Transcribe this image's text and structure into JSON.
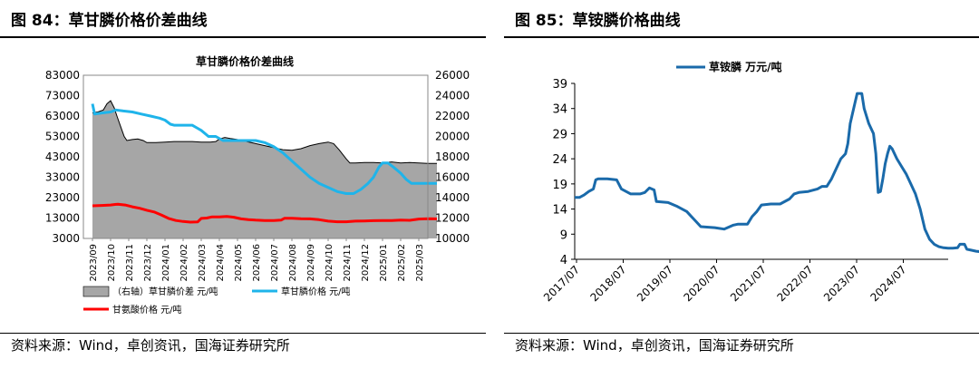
{
  "colors": {
    "fill": "#a6a6a6",
    "blue_light": "#1fb4ea",
    "red": "#ff0000",
    "blue_dark": "#1a6aaa"
  },
  "left": {
    "fig_title": "图 84：草甘膦价格价差曲线",
    "source": "资料来源：Wind，卓创资讯，国海证券研究所",
    "chart_data": {
      "type": "line",
      "title": "草甘膦价格价差曲线",
      "y_left": {
        "range": [
          3000,
          83000
        ],
        "ticks": [
          "83000",
          "73000",
          "63000",
          "53000",
          "43000",
          "33000",
          "23000",
          "13000",
          "3000"
        ]
      },
      "y_right": {
        "range": [
          10000,
          26000
        ],
        "ticks": [
          "26000",
          "24000",
          "22000",
          "20000",
          "18000",
          "16000",
          "14000",
          "12000",
          "10000"
        ]
      },
      "x_ticks": [
        "2023/09",
        "2023/10",
        "2023/11",
        "2023/12",
        "2024/01",
        "2024/02",
        "2024/03",
        "2024/04",
        "2024/05",
        "2024/06",
        "2024/07",
        "2024/08",
        "2024/09",
        "2024/10",
        "2024/11",
        "2024/12",
        "2025/01",
        "2025/02",
        "2025/03"
      ],
      "legend": {
        "spread": "（右轴）草甘膦价差 元/吨",
        "glyphosate": "草甘膦价格 元/吨",
        "glycine": "甘氨酸价格 元/吨"
      },
      "series": [
        {
          "name": "（右轴）草甘膦价差 元/吨",
          "axis": "right",
          "style": "area",
          "points": [
            [
              0,
              22300
            ],
            [
              0.3,
              22400
            ],
            [
              0.6,
              22600
            ],
            [
              0.8,
              23200
            ],
            [
              1.0,
              23500
            ],
            [
              1.2,
              22800
            ],
            [
              1.35,
              22000
            ],
            [
              1.55,
              21000
            ],
            [
              1.75,
              20000
            ],
            [
              1.9,
              19600
            ],
            [
              2.2,
              19700
            ],
            [
              2.5,
              19750
            ],
            [
              2.8,
              19600
            ],
            [
              3.0,
              19400
            ],
            [
              3.5,
              19400
            ],
            [
              4.0,
              19450
            ],
            [
              4.5,
              19500
            ],
            [
              5.0,
              19500
            ],
            [
              5.5,
              19500
            ],
            [
              6.0,
              19450
            ],
            [
              6.5,
              19450
            ],
            [
              6.8,
              19500
            ],
            [
              7.0,
              19750
            ],
            [
              7.3,
              19900
            ],
            [
              7.6,
              19800
            ],
            [
              8.0,
              19700
            ],
            [
              8.5,
              19500
            ],
            [
              9.0,
              19300
            ],
            [
              9.5,
              19100
            ],
            [
              10.0,
              18900
            ],
            [
              10.5,
              18700
            ],
            [
              11.0,
              18650
            ],
            [
              11.5,
              18800
            ],
            [
              12.0,
              19100
            ],
            [
              12.5,
              19300
            ],
            [
              13.0,
              19450
            ],
            [
              13.3,
              19300
            ],
            [
              13.6,
              18700
            ],
            [
              14.0,
              17800
            ],
            [
              14.2,
              17400
            ],
            [
              14.5,
              17400
            ],
            [
              15.0,
              17450
            ],
            [
              15.5,
              17450
            ],
            [
              16.0,
              17400
            ],
            [
              16.5,
              17500
            ],
            [
              17.0,
              17400
            ],
            [
              17.5,
              17450
            ],
            [
              18.0,
              17400
            ],
            [
              18.5,
              17350
            ],
            [
              19.0,
              17350
            ]
          ]
        },
        {
          "name": "草甘膦价格 元/吨",
          "axis": "left",
          "style": "line",
          "points": [
            [
              0,
              69000
            ],
            [
              0.12,
              64000
            ],
            [
              0.5,
              64500
            ],
            [
              1.0,
              65000
            ],
            [
              1.3,
              66000
            ],
            [
              1.7,
              65500
            ],
            [
              2.2,
              65000
            ],
            [
              2.7,
              64000
            ],
            [
              3.2,
              63000
            ],
            [
              3.7,
              62000
            ],
            [
              4.0,
              61000
            ],
            [
              4.3,
              59000
            ],
            [
              4.5,
              58500
            ],
            [
              5.0,
              58500
            ],
            [
              5.5,
              58500
            ],
            [
              5.8,
              57000
            ],
            [
              6.0,
              56000
            ],
            [
              6.4,
              53000
            ],
            [
              6.8,
              53000
            ],
            [
              7.2,
              51000
            ],
            [
              7.6,
              51000
            ],
            [
              8.0,
              51000
            ],
            [
              9.0,
              51000
            ],
            [
              9.5,
              50000
            ],
            [
              10.0,
              48000
            ],
            [
              10.5,
              45000
            ],
            [
              11.0,
              41000
            ],
            [
              11.5,
              37000
            ],
            [
              12.0,
              33000
            ],
            [
              12.5,
              30000
            ],
            [
              13.0,
              28000
            ],
            [
              13.5,
              26000
            ],
            [
              14.0,
              25000
            ],
            [
              14.4,
              25000
            ],
            [
              14.8,
              27000
            ],
            [
              15.2,
              30000
            ],
            [
              15.5,
              33000
            ],
            [
              15.8,
              38000
            ],
            [
              16.0,
              40000
            ],
            [
              16.3,
              40000
            ],
            [
              16.6,
              38000
            ],
            [
              17.0,
              35000
            ],
            [
              17.3,
              32000
            ],
            [
              17.6,
              30000
            ],
            [
              18.0,
              30000
            ],
            [
              18.5,
              30000
            ],
            [
              19.0,
              30000
            ]
          ]
        },
        {
          "name": "甘氨酸价格 元/吨",
          "axis": "left",
          "style": "line",
          "points": [
            [
              0,
              19000
            ],
            [
              0.5,
              19200
            ],
            [
              1.0,
              19400
            ],
            [
              1.4,
              19800
            ],
            [
              1.8,
              19400
            ],
            [
              2.2,
              18500
            ],
            [
              2.6,
              17800
            ],
            [
              3.0,
              16800
            ],
            [
              3.4,
              16000
            ],
            [
              3.8,
              14500
            ],
            [
              4.2,
              12800
            ],
            [
              4.6,
              11800
            ],
            [
              5.0,
              11300
            ],
            [
              5.4,
              11000
            ],
            [
              5.8,
              11100
            ],
            [
              6.0,
              12800
            ],
            [
              6.3,
              13000
            ],
            [
              6.6,
              13600
            ],
            [
              7.0,
              13600
            ],
            [
              7.4,
              13800
            ],
            [
              7.8,
              13400
            ],
            [
              8.2,
              12600
            ],
            [
              8.6,
              12200
            ],
            [
              9.0,
              12000
            ],
            [
              9.5,
              11800
            ],
            [
              10.0,
              11800
            ],
            [
              10.4,
              12000
            ],
            [
              10.6,
              12900
            ],
            [
              11.0,
              12900
            ],
            [
              11.5,
              12700
            ],
            [
              12.0,
              12600
            ],
            [
              12.5,
              12200
            ],
            [
              13.0,
              11500
            ],
            [
              13.5,
              11200
            ],
            [
              14.0,
              11200
            ],
            [
              14.5,
              11500
            ],
            [
              15.0,
              11600
            ],
            [
              15.5,
              11700
            ],
            [
              16.0,
              11800
            ],
            [
              16.5,
              11800
            ],
            [
              17.0,
              12000
            ],
            [
              17.5,
              11900
            ],
            [
              18.0,
              12500
            ],
            [
              18.5,
              12700
            ],
            [
              19.0,
              12600
            ]
          ]
        }
      ]
    }
  },
  "right": {
    "fig_title": "图 85：草铵膦价格曲线",
    "source": "资料来源：Wind，卓创资讯，国海证券研究所",
    "chart_data": {
      "type": "line",
      "y_range": [
        4,
        39
      ],
      "y_ticks": [
        "39",
        "34",
        "29",
        "24",
        "19",
        "14",
        "9",
        "4"
      ],
      "x_ticks": [
        "2017/07",
        "2018/07",
        "2019/07",
        "2020/07",
        "2021/07",
        "2022/07",
        "2023/07",
        "2024/07"
      ],
      "legend": "草铵膦 万元/吨",
      "series": [
        {
          "name": "草铵膦 万元/吨",
          "points": [
            [
              0,
              16.3
            ],
            [
              0.1,
              16.3
            ],
            [
              0.2,
              16.8
            ],
            [
              0.3,
              17.5
            ],
            [
              0.4,
              18.0
            ],
            [
              0.45,
              19.8
            ],
            [
              0.5,
              20.0
            ],
            [
              0.7,
              20.0
            ],
            [
              0.9,
              19.8
            ],
            [
              1.0,
              18.0
            ],
            [
              1.2,
              17.0
            ],
            [
              1.4,
              17.0
            ],
            [
              1.5,
              17.3
            ],
            [
              1.6,
              18.2
            ],
            [
              1.7,
              17.8
            ],
            [
              1.75,
              15.5
            ],
            [
              2.0,
              15.3
            ],
            [
              2.2,
              14.5
            ],
            [
              2.4,
              13.5
            ],
            [
              2.6,
              11.5
            ],
            [
              2.7,
              10.5
            ],
            [
              3.0,
              10.3
            ],
            [
              3.2,
              10.0
            ],
            [
              3.4,
              10.8
            ],
            [
              3.5,
              11.0
            ],
            [
              3.7,
              11.0
            ],
            [
              3.8,
              12.5
            ],
            [
              3.9,
              13.5
            ],
            [
              4.0,
              14.8
            ],
            [
              4.2,
              15.0
            ],
            [
              4.4,
              15.0
            ],
            [
              4.6,
              16.0
            ],
            [
              4.7,
              17.0
            ],
            [
              4.8,
              17.3
            ],
            [
              5.0,
              17.5
            ],
            [
              5.2,
              18.0
            ],
            [
              5.3,
              18.5
            ],
            [
              5.4,
              18.5
            ],
            [
              5.5,
              20.0
            ],
            [
              5.6,
              22.0
            ],
            [
              5.7,
              24.0
            ],
            [
              5.8,
              25.0
            ],
            [
              5.85,
              27.0
            ],
            [
              5.9,
              31.0
            ],
            [
              6.0,
              35.0
            ],
            [
              6.05,
              37.0
            ],
            [
              6.15,
              37.0
            ],
            [
              6.2,
              34.0
            ],
            [
              6.3,
              31.0
            ],
            [
              6.4,
              29.0
            ],
            [
              6.45,
              25.0
            ],
            [
              6.5,
              17.3
            ],
            [
              6.55,
              17.5
            ],
            [
              6.6,
              20.0
            ],
            [
              6.65,
              23.0
            ],
            [
              6.7,
              25.0
            ],
            [
              6.75,
              26.5
            ],
            [
              6.8,
              26.0
            ],
            [
              6.9,
              24.0
            ],
            [
              7.0,
              22.5
            ],
            [
              7.1,
              21.0
            ],
            [
              7.2,
              19.0
            ],
            [
              7.3,
              17.0
            ],
            [
              7.4,
              14.0
            ],
            [
              7.5,
              10.0
            ],
            [
              7.6,
              8.0
            ],
            [
              7.7,
              7.0
            ],
            [
              7.8,
              6.5
            ],
            [
              7.9,
              6.3
            ],
            [
              8.0,
              6.2
            ],
            [
              8.1,
              6.2
            ],
            [
              8.2,
              6.3
            ],
            [
              8.25,
              7.0
            ],
            [
              8.35,
              7.0
            ],
            [
              8.4,
              6.0
            ],
            [
              8.5,
              5.8
            ],
            [
              8.6,
              5.6
            ],
            [
              8.8,
              5.4
            ],
            [
              9.0,
              5.3
            ],
            [
              9.2,
              5.0
            ],
            [
              9.4,
              4.8
            ],
            [
              9.6,
              4.7
            ],
            [
              9.8,
              4.6
            ]
          ]
        }
      ]
    }
  }
}
